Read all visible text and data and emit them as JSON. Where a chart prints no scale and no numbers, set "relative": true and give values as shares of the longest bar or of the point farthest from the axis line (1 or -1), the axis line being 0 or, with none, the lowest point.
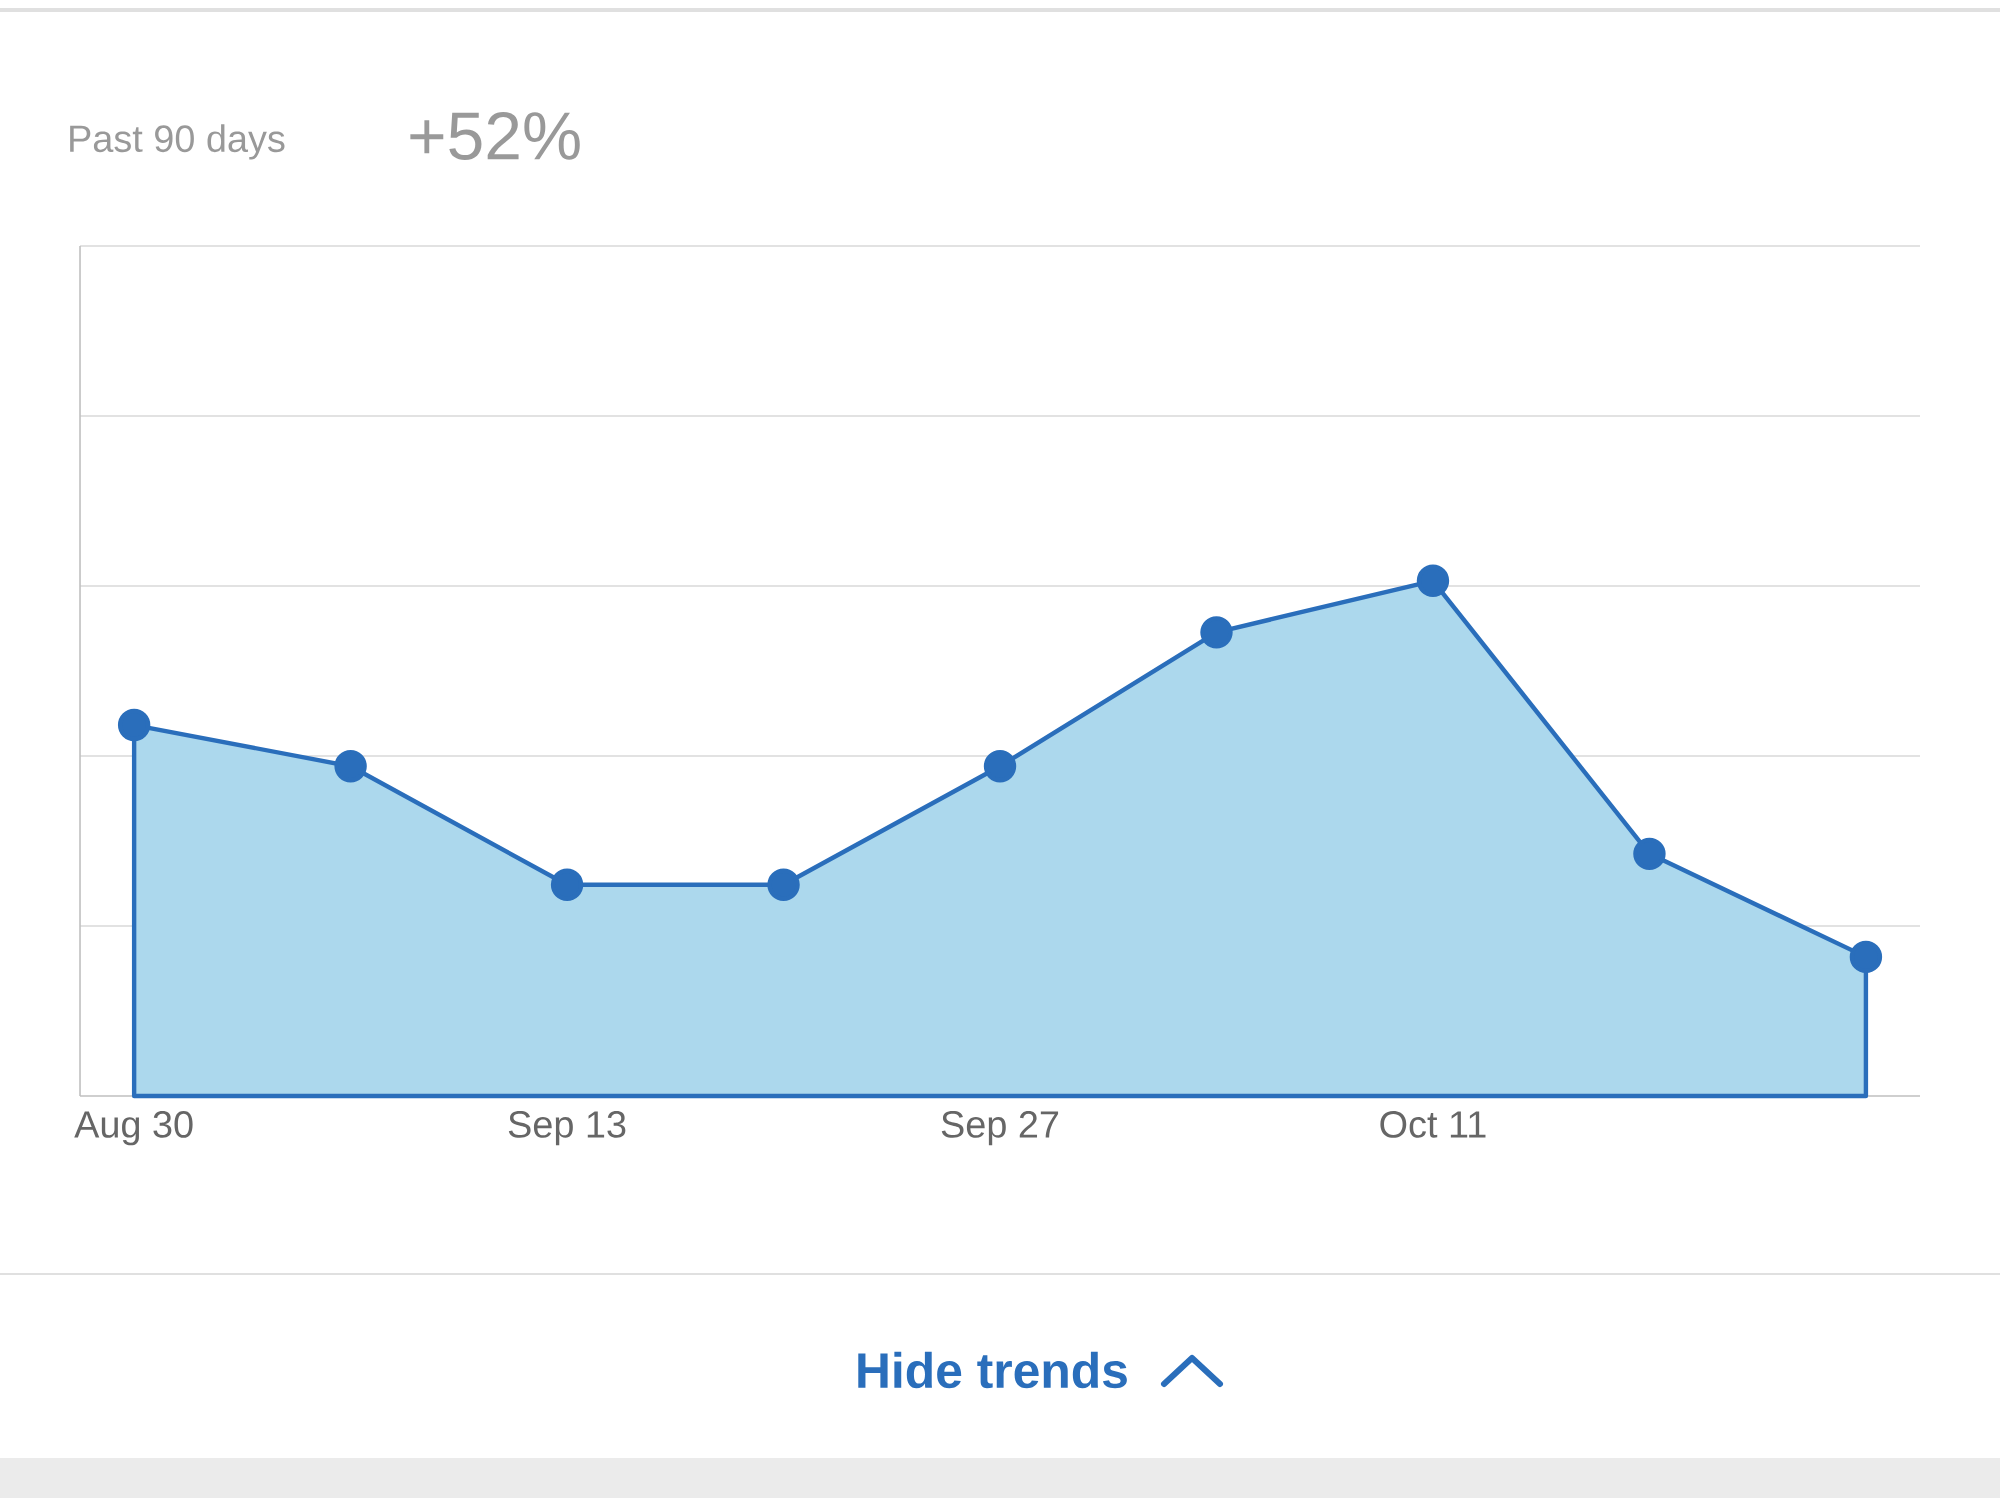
{
  "chart_data": {
    "type": "area",
    "relative": true,
    "categories": [
      "Aug 30",
      null,
      "Sep 13",
      null,
      "Sep 27",
      null,
      "Oct 11",
      null,
      null
    ],
    "values": [
      0.72,
      0.64,
      0.41,
      0.41,
      0.64,
      0.9,
      1,
      0.47,
      0.27
    ],
    "color": "#2a6ebb",
    "grid": "y",
    "marker": "circle",
    "annotations": [
      "Past 90 days",
      "+52%",
      "Hide trends"
    ]
  }
}
